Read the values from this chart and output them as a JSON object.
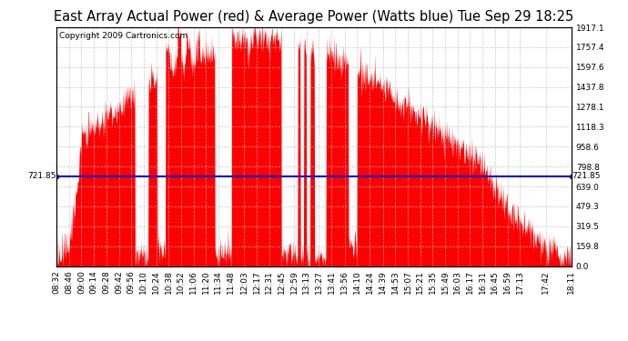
{
  "title": "East Array Actual Power (red) & Average Power (Watts blue) Tue Sep 29 18:25",
  "copyright": "Copyright 2009 Cartronics.com",
  "avg_power": 721.85,
  "y_max": 1917.1,
  "y_min": 0.0,
  "y_ticks": [
    0.0,
    159.8,
    319.5,
    479.3,
    639.0,
    798.8,
    958.6,
    1118.3,
    1278.1,
    1437.8,
    1597.6,
    1757.4,
    1917.1
  ],
  "x_tick_labels": [
    "08:32",
    "08:46",
    "09:00",
    "09:14",
    "09:28",
    "09:42",
    "09:56",
    "10:10",
    "10:24",
    "10:38",
    "10:52",
    "11:06",
    "11:20",
    "11:34",
    "11:48",
    "12:03",
    "12:17",
    "12:31",
    "12:45",
    "12:59",
    "13:13",
    "13:27",
    "13:41",
    "13:56",
    "14:10",
    "14:24",
    "14:39",
    "14:53",
    "15:07",
    "15:21",
    "15:35",
    "15:49",
    "16:03",
    "16:17",
    "16:31",
    "16:45",
    "16:59",
    "17:13",
    "17:42",
    "18:11"
  ],
  "fill_color": "#FF0000",
  "line_color": "#0000CC",
  "bg_color": "#FFFFFF",
  "grid_color": "#BBBBBB",
  "title_fontsize": 10.5,
  "axis_fontsize": 6.5,
  "copyright_fontsize": 6.5
}
